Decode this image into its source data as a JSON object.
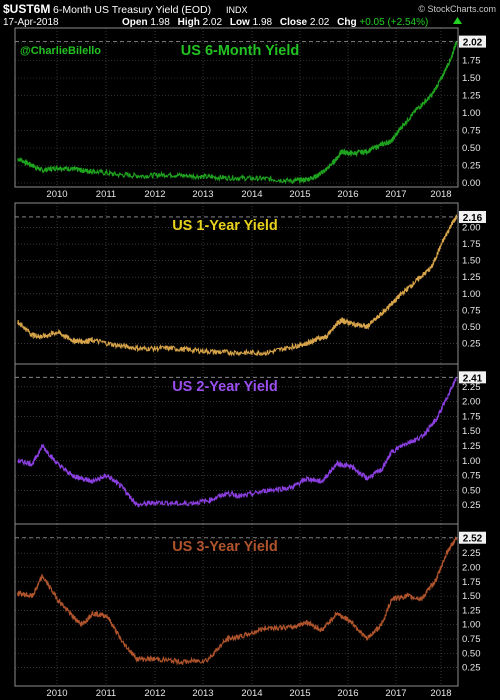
{
  "header": {
    "symbol": "$UST6M",
    "description": "6-Month US Treasury Yield (EOD)",
    "exchange": "INDX",
    "date": "17-Apr-2018",
    "open_label": "Open",
    "open": "1.98",
    "high_label": "High",
    "high": "2.02",
    "low_label": "Low",
    "low": "1.98",
    "close_label": "Close",
    "close": "2.02",
    "chg_label": "Chg",
    "chg": "+0.05 (+2.54%)",
    "watermark": "© StockCharts.com",
    "author": "@CharlieBilello"
  },
  "colors": {
    "background": "#000000",
    "grid": "#5a5a5a",
    "panel_border": "#8c8c8c",
    "six_month": "#1fa31f",
    "one_year": "#d9a54a",
    "two_year": "#8b3fe0",
    "three_year": "#b0542c"
  },
  "chart_data": [
    {
      "type": "line",
      "title": "US 6-Month Yield",
      "title_color": "#22c222",
      "color": "#1fa31f",
      "last_label": "2.02",
      "ylim": [
        0.0,
        2.1
      ],
      "yticks": [
        "0.00",
        "0.25",
        "0.50",
        "0.75",
        "1.00",
        "1.25",
        "1.50",
        "1.75",
        "2.00"
      ],
      "x": [
        2009.5,
        2009.8,
        2010.0,
        2010.3,
        2010.6,
        2010.8,
        2011.0,
        2011.5,
        2012.0,
        2012.5,
        2013.0,
        2013.5,
        2014.0,
        2014.5,
        2015.0,
        2015.3,
        2015.5,
        2015.7,
        2015.9,
        2016.0,
        2016.2,
        2016.5,
        2016.8,
        2017.0,
        2017.2,
        2017.5,
        2017.8,
        2018.0,
        2018.2,
        2018.3
      ],
      "values": [
        0.35,
        0.25,
        0.18,
        0.22,
        0.2,
        0.18,
        0.17,
        0.12,
        0.1,
        0.12,
        0.1,
        0.08,
        0.07,
        0.06,
        0.03,
        0.05,
        0.1,
        0.2,
        0.35,
        0.45,
        0.42,
        0.45,
        0.55,
        0.6,
        0.8,
        1.05,
        1.25,
        1.5,
        1.8,
        2.02
      ]
    },
    {
      "type": "line",
      "title": "US 1-Year Yield",
      "title_color": "#e8d21c",
      "color": "#d9a54a",
      "last_label": "2.16",
      "ylim": [
        0.0,
        2.25
      ],
      "yticks": [
        "0.25",
        "0.50",
        "0.75",
        "1.00",
        "1.25",
        "1.50",
        "1.75",
        "2.00"
      ],
      "x": [
        2009.5,
        2009.8,
        2010.0,
        2010.3,
        2010.6,
        2010.8,
        2011.0,
        2011.5,
        2012.0,
        2012.5,
        2013.0,
        2013.5,
        2014.0,
        2014.5,
        2015.0,
        2015.3,
        2015.5,
        2015.7,
        2015.9,
        2016.0,
        2016.2,
        2016.5,
        2016.8,
        2017.0,
        2017.2,
        2017.5,
        2017.8,
        2018.0,
        2018.2,
        2018.3
      ],
      "values": [
        0.58,
        0.38,
        0.35,
        0.42,
        0.3,
        0.28,
        0.3,
        0.22,
        0.17,
        0.18,
        0.15,
        0.12,
        0.11,
        0.11,
        0.2,
        0.25,
        0.32,
        0.35,
        0.55,
        0.6,
        0.55,
        0.5,
        0.7,
        0.85,
        1.0,
        1.2,
        1.4,
        1.75,
        2.05,
        2.16
      ]
    },
    {
      "type": "line",
      "title": "US 2-Year Yield",
      "title_color": "#9b4ff0",
      "color": "#8b3fe0",
      "last_label": "2.41",
      "ylim": [
        0.0,
        2.5
      ],
      "yticks": [
        "0.25",
        "0.50",
        "0.75",
        "1.00",
        "1.25",
        "1.50",
        "1.75",
        "2.00",
        "2.25"
      ],
      "x": [
        2009.5,
        2009.8,
        2010.0,
        2010.3,
        2010.6,
        2010.8,
        2011.0,
        2011.3,
        2011.6,
        2011.9,
        2012.3,
        2012.8,
        2013.3,
        2013.7,
        2014.0,
        2014.5,
        2015.0,
        2015.3,
        2015.6,
        2015.9,
        2016.2,
        2016.5,
        2016.8,
        2017.0,
        2017.3,
        2017.6,
        2017.9,
        2018.1,
        2018.3
      ],
      "values": [
        1.0,
        0.95,
        1.25,
        0.95,
        0.75,
        0.7,
        0.65,
        0.75,
        0.55,
        0.25,
        0.3,
        0.27,
        0.32,
        0.45,
        0.4,
        0.5,
        0.55,
        0.7,
        0.65,
        0.95,
        0.9,
        0.7,
        0.85,
        1.15,
        1.3,
        1.4,
        1.7,
        2.05,
        2.41
      ]
    },
    {
      "type": "line",
      "title": "US 3-Year Yield",
      "title_color": "#b0542c",
      "color": "#b0542c",
      "last_label": "2.52",
      "ylim": [
        0.0,
        2.62
      ],
      "yticks": [
        "0.25",
        "0.50",
        "0.75",
        "1.00",
        "1.25",
        "1.50",
        "1.75",
        "2.00",
        "2.25",
        "2.50"
      ],
      "xticks": [
        "2010",
        "2011",
        "2012",
        "2013",
        "2014",
        "2015",
        "2016",
        "2017",
        "2018"
      ],
      "x": [
        2009.5,
        2009.8,
        2010.0,
        2010.3,
        2010.6,
        2010.8,
        2011.0,
        2011.3,
        2011.6,
        2011.9,
        2012.3,
        2012.8,
        2013.3,
        2013.7,
        2014.0,
        2014.5,
        2015.0,
        2015.3,
        2015.6,
        2015.9,
        2016.2,
        2016.5,
        2016.8,
        2017.0,
        2017.3,
        2017.6,
        2017.9,
        2018.1,
        2018.3
      ],
      "values": [
        1.55,
        1.5,
        1.85,
        1.45,
        1.15,
        1.0,
        1.2,
        1.15,
        0.7,
        0.4,
        0.4,
        0.35,
        0.38,
        0.75,
        0.8,
        0.95,
        0.95,
        1.05,
        0.9,
        1.2,
        1.05,
        0.75,
        1.0,
        1.45,
        1.5,
        1.45,
        1.8,
        2.25,
        2.52
      ]
    }
  ]
}
